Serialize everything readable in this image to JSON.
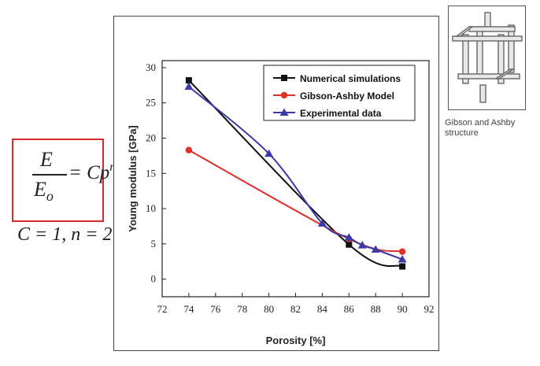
{
  "formula": {
    "numerator": "E",
    "denominator_base": "E",
    "denominator_sub": "o",
    "rhs_base": "= Cp",
    "rhs_exp": "n",
    "params": "C = 1, n = 2"
  },
  "structure": {
    "caption": "Gibson and Ashby structure",
    "icon": "cubic-lattice-icon"
  },
  "colors": {
    "formula_border": "#d42a2a",
    "numerical": "#111111",
    "gibson": "#e0302a",
    "experimental": "#3a3aa8"
  },
  "chart_data": {
    "type": "line",
    "xlabel": "Porosity [%]",
    "ylabel": "Young modulus [GPa]",
    "xlim": [
      72,
      92
    ],
    "ylim": [
      -2.5,
      31
    ],
    "xticks": [
      72,
      74,
      76,
      78,
      80,
      82,
      84,
      86,
      88,
      90,
      92
    ],
    "yticks": [
      0,
      5,
      10,
      15,
      20,
      25,
      30
    ],
    "legend_position": "top-right",
    "series": [
      {
        "name": "Numerical simulations",
        "color": "#111111",
        "marker": "square",
        "x": [
          74,
          86,
          90
        ],
        "y": [
          28.2,
          4.9,
          1.8
        ]
      },
      {
        "name": "Gibson-Ashby Model",
        "color": "#e0302a",
        "marker": "circle",
        "x": [
          74,
          86,
          90
        ],
        "y": [
          18.3,
          5.7,
          3.9
        ]
      },
      {
        "name": "Experimental data",
        "color": "#3a3aa8",
        "marker": "triangle",
        "x": [
          74,
          80,
          84,
          86,
          87,
          88,
          90
        ],
        "y": [
          27.3,
          17.8,
          7.9,
          5.9,
          4.8,
          4.2,
          2.8
        ]
      }
    ]
  }
}
